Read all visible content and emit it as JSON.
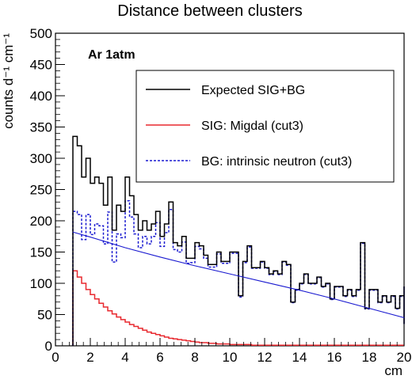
{
  "chart_data": {
    "type": "line",
    "title": "Distance between clusters",
    "xlabel": "cm",
    "ylabel": "counts d⁻¹ cm⁻¹",
    "annotation": "Ar 1atm",
    "xlim": [
      0,
      20
    ],
    "ylim": [
      0,
      500
    ],
    "x_ticks": [
      "0",
      "2",
      "4",
      "6",
      "8",
      "10",
      "12",
      "14",
      "16",
      "18",
      "20"
    ],
    "y_ticks": [
      "0",
      "50",
      "100",
      "150",
      "200",
      "250",
      "300",
      "350",
      "400",
      "450",
      "500"
    ],
    "grid": false,
    "legend_position": "upper-right",
    "bin_width": 0.25,
    "x_start": 1.0,
    "series": [
      {
        "name": "Expected SIG+BG",
        "color": "#000000",
        "style": "solid",
        "drawstyle": "steps",
        "values": [
          335,
          320,
          270,
          300,
          260,
          270,
          260,
          225,
          270,
          185,
          225,
          215,
          270,
          240,
          210,
          185,
          200,
          185,
          195,
          215,
          175,
          195,
          230,
          165,
          160,
          175,
          140,
          140,
          165,
          160,
          145,
          130,
          130,
          150,
          135,
          135,
          150,
          150,
          80,
          135,
          160,
          125,
          125,
          135,
          125,
          115,
          120,
          115,
          135,
          130,
          70,
          90,
          100,
          115,
          100,
          100,
          110,
          95,
          100,
          75,
          95,
          95,
          80,
          90,
          80,
          90,
          165,
          60,
          90,
          90,
          70,
          80,
          70,
          80,
          60,
          80,
          75,
          95,
          35,
          75,
          80,
          65,
          45,
          55,
          65,
          55,
          55,
          55,
          50,
          40,
          55,
          40,
          55,
          60,
          55,
          60,
          50,
          60,
          55,
          40,
          45,
          35,
          60,
          55,
          60,
          55,
          60,
          50,
          60,
          50,
          50,
          50,
          45,
          55,
          45,
          50,
          45,
          45,
          55,
          50,
          50,
          45,
          50,
          45,
          45,
          40,
          40,
          45,
          45,
          40,
          40,
          40,
          40,
          40,
          40,
          40,
          40,
          40,
          35,
          40,
          45,
          40,
          40,
          40,
          40,
          40,
          40,
          40,
          40,
          40,
          40,
          45,
          40,
          40,
          40,
          45
        ]
      },
      {
        "name": "SIG: Migdal (cut3)",
        "color": "#e8292f",
        "style": "solid",
        "drawstyle": "steps",
        "values": [
          120,
          110,
          100,
          90,
          82,
          75,
          68,
          62,
          56,
          51,
          46,
          42,
          38,
          34,
          31,
          28,
          25,
          22,
          20,
          18,
          16,
          14,
          12,
          11,
          10,
          9,
          8,
          7,
          6,
          5,
          5,
          4,
          4,
          3,
          3,
          3,
          2,
          2,
          2,
          2,
          2,
          1,
          1,
          1,
          1,
          1,
          1,
          1,
          1,
          1,
          1,
          1,
          1,
          1,
          1,
          1,
          1,
          1,
          1,
          1,
          1,
          1,
          1,
          1,
          1,
          1,
          1,
          1,
          1,
          1,
          1,
          1,
          1,
          1,
          1,
          1
        ]
      },
      {
        "name": "BG: intrinsic neutron (cut3)",
        "color": "#1a1ad0",
        "style": "dashed",
        "drawstyle": "steps",
        "values": [
          215,
          210,
          170,
          210,
          178,
          195,
          192,
          163,
          214,
          134,
          179,
          173,
          232,
          206,
          179,
          157,
          175,
          163,
          175,
          197,
          159,
          181,
          218,
          154,
          150,
          166,
          132,
          133,
          159,
          155,
          140,
          126,
          126,
          147,
          132,
          132,
          148,
          148,
          78,
          133,
          158,
          124,
          124,
          134,
          124,
          114,
          119,
          114,
          134,
          129,
          69,
          89,
          99,
          114,
          99,
          99,
          109,
          94,
          99,
          74,
          94,
          94,
          79,
          89,
          79,
          89,
          164,
          59,
          89,
          89,
          69,
          79,
          69,
          79,
          59,
          79,
          75,
          95,
          35,
          75,
          80,
          65,
          45,
          55,
          65,
          55,
          55,
          55,
          50,
          40,
          55,
          40,
          55,
          60,
          55,
          60,
          50,
          60,
          55,
          40,
          45,
          35,
          60,
          55,
          60,
          55,
          60,
          50,
          60,
          50,
          50,
          50,
          45,
          55,
          45,
          50,
          45,
          45,
          55,
          50,
          50,
          45,
          50,
          45,
          45,
          40,
          40,
          45,
          45,
          40,
          40,
          40,
          40,
          40,
          40,
          40,
          40,
          40,
          35,
          40,
          45,
          40,
          40,
          40,
          40,
          40,
          40,
          40,
          40,
          40,
          40,
          45,
          40,
          40,
          40,
          45
        ]
      },
      {
        "name": "",
        "color": "#1a1ad0",
        "style": "solid",
        "drawstyle": "line",
        "x": [
          1,
          2,
          4,
          6,
          8,
          10,
          12,
          14,
          16,
          18,
          20
        ],
        "values": [
          182,
          174,
          157,
          142,
          128,
          115,
          102,
          89,
          75,
          60,
          45
        ]
      }
    ]
  }
}
